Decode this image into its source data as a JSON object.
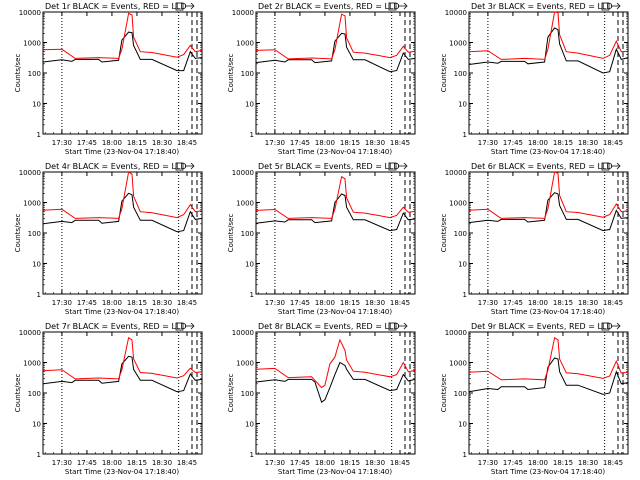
{
  "figure": {
    "xlabel": "Start Time (23-Nov-04 17:18:40)",
    "ylabel": "Counts/sec",
    "x_tick_labels": [
      "17:30",
      "17:45",
      "18:00",
      "18:15",
      "18:30",
      "18:45"
    ],
    "y_tick_labels": [
      "1",
      "10",
      "100",
      "1000",
      "10000"
    ]
  },
  "colors": {
    "events": "#000000",
    "lld": "#ff0000",
    "axes": "#000000"
  },
  "chart_data": [
    {
      "type": "line",
      "title": "Det 1r BLACK = Events, RED = LLD",
      "xlim": [
        "17:18:40",
        "18:54:00"
      ],
      "ylim": [
        1,
        10000
      ],
      "yscale": "log",
      "dotted_vlines": [
        "17:30",
        "18:40"
      ],
      "dashed_vlines": [
        "18:48",
        "18:51"
      ],
      "series": [
        {
          "name": "Events",
          "color": "#000000",
          "x": [
            "17:18:40",
            "17:30",
            "17:36",
            "17:38",
            "17:52",
            "17:54",
            "18:04",
            "18:06",
            "18:10",
            "18:12",
            "18:13",
            "18:17",
            "18:24",
            "18:39",
            "18:43",
            "18:47",
            "18:50",
            "18:54"
          ],
          "y": [
            230,
            270,
            240,
            280,
            280,
            230,
            260,
            1200,
            2200,
            2100,
            800,
            280,
            280,
            120,
            120,
            500,
            300,
            320
          ]
        },
        {
          "name": "LLD",
          "color": "#ff0000",
          "x": [
            "17:18:40",
            "17:30",
            "17:38",
            "17:52",
            "18:04",
            "18:06",
            "18:10",
            "18:12",
            "18:13",
            "18:17",
            "18:24",
            "18:39",
            "18:43",
            "18:47",
            "18:50",
            "18:54"
          ],
          "y": [
            580,
            600,
            300,
            320,
            300,
            600,
            9000,
            8000,
            1500,
            500,
            470,
            330,
            400,
            800,
            500,
            550
          ]
        }
      ]
    },
    {
      "type": "line",
      "title": "Det 2r BLACK = Events, RED = LLD",
      "xlim": [
        "17:18:40",
        "18:54:00"
      ],
      "ylim": [
        1,
        10000
      ],
      "yscale": "log",
      "dotted_vlines": [
        "17:30",
        "18:40"
      ],
      "dashed_vlines": [
        "18:48",
        "18:51"
      ],
      "series": [
        {
          "name": "Events",
          "color": "#000000",
          "x": [
            "17:18:40",
            "17:30",
            "17:36",
            "17:38",
            "17:52",
            "17:54",
            "18:04",
            "18:06",
            "18:10",
            "18:12",
            "18:13",
            "18:17",
            "18:24",
            "18:39",
            "18:43",
            "18:47",
            "18:50",
            "18:54"
          ],
          "y": [
            220,
            260,
            230,
            270,
            270,
            220,
            250,
            1100,
            2000,
            1900,
            700,
            270,
            270,
            110,
            120,
            450,
            280,
            300
          ]
        },
        {
          "name": "LLD",
          "color": "#ff0000",
          "x": [
            "17:18:40",
            "17:30",
            "17:38",
            "17:52",
            "18:04",
            "18:06",
            "18:10",
            "18:12",
            "18:13",
            "18:17",
            "18:24",
            "18:39",
            "18:43",
            "18:47",
            "18:50",
            "18:54"
          ],
          "y": [
            550,
            580,
            290,
            310,
            290,
            580,
            8500,
            7500,
            1400,
            480,
            450,
            320,
            380,
            750,
            480,
            520
          ]
        }
      ]
    },
    {
      "type": "line",
      "title": "Det 3r BLACK = Events, RED = LLD",
      "xlim": [
        "17:18:40",
        "18:54:00"
      ],
      "ylim": [
        1,
        10000
      ],
      "yscale": "log",
      "dotted_vlines": [
        "17:30",
        "18:40"
      ],
      "dashed_vlines": [
        "18:48",
        "18:51"
      ],
      "series": [
        {
          "name": "Events",
          "color": "#000000",
          "x": [
            "17:18:40",
            "17:30",
            "17:36",
            "17:38",
            "17:52",
            "17:54",
            "18:04",
            "18:06",
            "18:10",
            "18:12",
            "18:13",
            "18:17",
            "18:24",
            "18:39",
            "18:43",
            "18:47",
            "18:50",
            "18:54"
          ],
          "y": [
            190,
            230,
            210,
            240,
            240,
            200,
            230,
            1500,
            3000,
            2600,
            900,
            250,
            250,
            100,
            110,
            600,
            280,
            320
          ]
        },
        {
          "name": "LLD",
          "color": "#ff0000",
          "x": [
            "17:18:40",
            "17:30",
            "17:38",
            "17:52",
            "18:04",
            "18:06",
            "18:10",
            "18:12",
            "18:13",
            "18:17",
            "18:24",
            "18:39",
            "18:43",
            "18:47",
            "18:50",
            "18:54"
          ],
          "y": [
            500,
            540,
            280,
            300,
            280,
            600,
            12000,
            9500,
            1800,
            500,
            450,
            300,
            380,
            1100,
            500,
            520
          ]
        }
      ]
    },
    {
      "type": "line",
      "title": "Det 4r BLACK = Events, RED = LLD",
      "xlim": [
        "17:18:40",
        "18:54:00"
      ],
      "ylim": [
        1,
        10000
      ],
      "yscale": "log",
      "dotted_vlines": [
        "17:30",
        "18:40"
      ],
      "dashed_vlines": [
        "18:48",
        "18:51"
      ],
      "series": [
        {
          "name": "Events",
          "color": "#000000",
          "x": [
            "17:18:40",
            "17:30",
            "17:36",
            "17:38",
            "17:52",
            "17:54",
            "18:04",
            "18:06",
            "18:10",
            "18:12",
            "18:13",
            "18:17",
            "18:24",
            "18:39",
            "18:43",
            "18:47",
            "18:50",
            "18:54"
          ],
          "y": [
            200,
            240,
            220,
            260,
            260,
            210,
            240,
            1100,
            2000,
            1800,
            700,
            260,
            260,
            110,
            120,
            500,
            280,
            300
          ]
        },
        {
          "name": "LLD",
          "color": "#ff0000",
          "x": [
            "17:18:40",
            "17:30",
            "17:38",
            "17:52",
            "18:04",
            "18:06",
            "18:10",
            "18:12",
            "18:13",
            "18:17",
            "18:24",
            "18:39",
            "18:43",
            "18:47",
            "18:50",
            "18:54"
          ],
          "y": [
            560,
            600,
            300,
            320,
            300,
            620,
            10000,
            8500,
            1600,
            500,
            460,
            320,
            400,
            850,
            500,
            540
          ]
        }
      ]
    },
    {
      "type": "line",
      "title": "Det 5r BLACK = Events, RED = LLD",
      "xlim": [
        "17:18:40",
        "18:54:00"
      ],
      "ylim": [
        1,
        10000
      ],
      "yscale": "log",
      "dotted_vlines": [
        "17:30",
        "18:40"
      ],
      "dashed_vlines": [
        "18:48",
        "18:51"
      ],
      "series": [
        {
          "name": "Events",
          "color": "#000000",
          "x": [
            "17:18:40",
            "17:30",
            "17:36",
            "17:38",
            "17:52",
            "17:54",
            "18:04",
            "18:06",
            "18:10",
            "18:12",
            "18:13",
            "18:17",
            "18:24",
            "18:39",
            "18:43",
            "18:47",
            "18:50",
            "18:54"
          ],
          "y": [
            210,
            250,
            230,
            270,
            270,
            220,
            250,
            1000,
            1900,
            1700,
            700,
            270,
            270,
            120,
            130,
            450,
            270,
            290
          ]
        },
        {
          "name": "LLD",
          "color": "#ff0000",
          "x": [
            "17:18:40",
            "17:30",
            "17:38",
            "17:52",
            "18:04",
            "18:06",
            "18:10",
            "18:12",
            "18:13",
            "18:17",
            "18:24",
            "18:39",
            "18:43",
            "18:47",
            "18:50",
            "18:54"
          ],
          "y": [
            550,
            590,
            300,
            320,
            300,
            600,
            7000,
            6000,
            1400,
            480,
            450,
            320,
            380,
            700,
            480,
            510
          ]
        }
      ]
    },
    {
      "type": "line",
      "title": "Det 6r BLACK = Events, RED = LLD",
      "xlim": [
        "17:18:40",
        "18:54:00"
      ],
      "ylim": [
        1,
        10000
      ],
      "yscale": "log",
      "dotted_vlines": [
        "17:30",
        "18:40"
      ],
      "dashed_vlines": [
        "18:48",
        "18:51"
      ],
      "series": [
        {
          "name": "Events",
          "color": "#000000",
          "x": [
            "17:18:40",
            "17:30",
            "17:36",
            "17:38",
            "17:52",
            "17:54",
            "18:04",
            "18:06",
            "18:10",
            "18:12",
            "18:13",
            "18:17",
            "18:24",
            "18:39",
            "18:43",
            "18:47",
            "18:50",
            "18:54"
          ],
          "y": [
            220,
            260,
            240,
            280,
            280,
            230,
            260,
            1200,
            2100,
            1900,
            800,
            280,
            280,
            120,
            130,
            550,
            300,
            320
          ]
        },
        {
          "name": "LLD",
          "color": "#ff0000",
          "x": [
            "17:18:40",
            "17:30",
            "17:38",
            "17:52",
            "18:04",
            "18:06",
            "18:10",
            "18:12",
            "18:13",
            "18:17",
            "18:24",
            "18:39",
            "18:43",
            "18:47",
            "18:50",
            "18:54"
          ],
          "y": [
            560,
            600,
            300,
            320,
            300,
            620,
            10500,
            9000,
            1700,
            500,
            470,
            330,
            400,
            900,
            500,
            540
          ]
        }
      ]
    },
    {
      "type": "line",
      "title": "Det 7r BLACK = Events, RED = LLD",
      "xlim": [
        "17:18:40",
        "18:54:00"
      ],
      "ylim": [
        1,
        10000
      ],
      "yscale": "log",
      "dotted_vlines": [
        "17:30",
        "18:40"
      ],
      "dashed_vlines": [
        "18:48",
        "18:51"
      ],
      "series": [
        {
          "name": "Events",
          "color": "#000000",
          "x": [
            "17:18:40",
            "17:30",
            "17:36",
            "17:38",
            "17:52",
            "17:54",
            "18:04",
            "18:06",
            "18:10",
            "18:12",
            "18:13",
            "18:17",
            "18:24",
            "18:39",
            "18:43",
            "18:47",
            "18:50",
            "18:54"
          ],
          "y": [
            200,
            240,
            220,
            260,
            260,
            210,
            240,
            900,
            1600,
            1500,
            600,
            260,
            260,
            110,
            120,
            420,
            260,
            280
          ]
        },
        {
          "name": "LLD",
          "color": "#ff0000",
          "x": [
            "17:18:40",
            "17:30",
            "17:38",
            "17:52",
            "18:04",
            "18:06",
            "18:10",
            "18:12",
            "18:13",
            "18:17",
            "18:24",
            "18:39",
            "18:43",
            "18:47",
            "18:50",
            "18:54"
          ],
          "y": [
            540,
            580,
            290,
            310,
            290,
            580,
            6500,
            5500,
            1300,
            470,
            440,
            310,
            370,
            650,
            470,
            500
          ]
        }
      ]
    },
    {
      "type": "line",
      "title": "Det 8r BLACK = Events, RED = LLD",
      "xlim": [
        "17:18:40",
        "18:54:00"
      ],
      "ylim": [
        1,
        10000
      ],
      "yscale": "log",
      "dotted_vlines": [
        "17:30",
        "18:40"
      ],
      "dashed_vlines": [
        "18:48",
        "18:51"
      ],
      "series": [
        {
          "name": "Events",
          "color": "#000000",
          "x": [
            "17:18:40",
            "17:30",
            "17:36",
            "17:38",
            "17:52",
            "17:54",
            "17:58",
            "18:00",
            "18:03",
            "18:06",
            "18:09",
            "18:12",
            "18:13",
            "18:17",
            "18:24",
            "18:39",
            "18:43",
            "18:47",
            "18:50",
            "18:54"
          ],
          "y": [
            230,
            270,
            240,
            280,
            280,
            230,
            50,
            60,
            150,
            400,
            1000,
            800,
            600,
            280,
            280,
            120,
            130,
            400,
            250,
            280
          ]
        },
        {
          "name": "LLD",
          "color": "#ff0000",
          "x": [
            "17:18:40",
            "17:30",
            "17:38",
            "17:52",
            "17:58",
            "18:00",
            "18:03",
            "18:06",
            "18:09",
            "18:12",
            "18:13",
            "18:17",
            "18:24",
            "18:39",
            "18:43",
            "18:47",
            "18:50",
            "18:54"
          ],
          "y": [
            600,
            640,
            320,
            340,
            150,
            180,
            900,
            1500,
            5500,
            2500,
            1200,
            520,
            480,
            340,
            400,
            1000,
            500,
            550
          ]
        }
      ]
    },
    {
      "type": "line",
      "title": "Det 9r BLACK = Events, RED = LLD",
      "xlim": [
        "17:18:40",
        "18:54:00"
      ],
      "ylim": [
        1,
        10000
      ],
      "yscale": "log",
      "dotted_vlines": [
        "17:30",
        "18:40"
      ],
      "dashed_vlines": [
        "18:48",
        "18:51"
      ],
      "series": [
        {
          "name": "Events",
          "color": "#000000",
          "x": [
            "17:18:40",
            "17:30",
            "17:36",
            "17:38",
            "17:52",
            "17:54",
            "18:04",
            "18:06",
            "18:10",
            "18:12",
            "18:13",
            "18:17",
            "18:24",
            "18:39",
            "18:43",
            "18:47",
            "18:50",
            "18:54"
          ],
          "y": [
            110,
            140,
            130,
            160,
            160,
            130,
            150,
            700,
            1400,
            1300,
            500,
            180,
            180,
            90,
            100,
            500,
            200,
            220
          ]
        },
        {
          "name": "LLD",
          "color": "#ff0000",
          "x": [
            "17:18:40",
            "17:30",
            "17:38",
            "17:52",
            "18:04",
            "18:06",
            "18:10",
            "18:12",
            "18:13",
            "18:17",
            "18:24",
            "18:39",
            "18:43",
            "18:47",
            "18:50",
            "18:54"
          ],
          "y": [
            480,
            520,
            270,
            290,
            270,
            560,
            6500,
            5500,
            1300,
            460,
            430,
            300,
            360,
            1100,
            450,
            480
          ]
        }
      ]
    }
  ]
}
